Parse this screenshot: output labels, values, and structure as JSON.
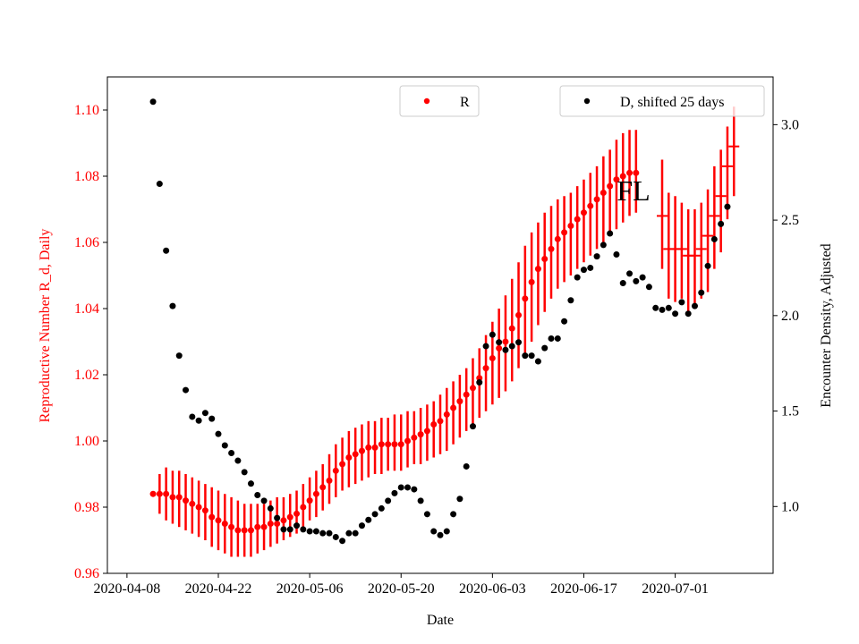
{
  "chart_data": {
    "type": "scatter",
    "title": "",
    "annotation": "FL",
    "xlabel": "Date",
    "ylabel_left": "Reproductive Number R_d, Daily",
    "ylabel_right": "Encounter Density, Adjusted",
    "x_range": [
      "2020-04-05",
      "2020-07-16"
    ],
    "x_ticks": [
      "2020-04-08",
      "2020-04-22",
      "2020-05-06",
      "2020-05-20",
      "2020-06-03",
      "2020-06-17",
      "2020-07-01"
    ],
    "y_left_range": [
      0.96,
      1.11
    ],
    "y_left_ticks": [
      "0.96",
      "0.98",
      "1.00",
      "1.02",
      "1.04",
      "1.06",
      "1.08",
      "1.10"
    ],
    "y_right_range": [
      0.65,
      3.25
    ],
    "y_right_ticks": [
      "1.0",
      "1.5",
      "2.0",
      "2.5",
      "3.0"
    ],
    "grid": false,
    "colors": {
      "R": "#ff0000",
      "D": "#000000",
      "left_axis_text": "#ff0000"
    },
    "legend": [
      {
        "label": "R",
        "color": "#ff0000",
        "placement": "upper-center"
      },
      {
        "label": "D, shifted 25 days",
        "color": "#000000",
        "placement": "upper-right"
      }
    ],
    "series": [
      {
        "name": "R",
        "axis": "left",
        "marker_style": "dot",
        "start_date": "2020-04-12",
        "values": [
          0.984,
          0.984,
          0.984,
          0.983,
          0.983,
          0.982,
          0.981,
          0.98,
          0.979,
          0.977,
          0.976,
          0.975,
          0.974,
          0.973,
          0.973,
          0.973,
          0.974,
          0.974,
          0.975,
          0.975,
          0.976,
          0.977,
          0.978,
          0.98,
          0.982,
          0.984,
          0.986,
          0.988,
          0.991,
          0.993,
          0.995,
          0.996,
          0.997,
          0.998,
          0.998,
          0.999,
          0.999,
          0.999,
          0.999,
          1.0,
          1.001,
          1.002,
          1.003,
          1.005,
          1.006,
          1.008,
          1.01,
          1.012,
          1.014,
          1.016,
          1.019,
          1.022,
          1.025,
          1.028,
          1.03,
          1.034,
          1.038,
          1.043,
          1.048,
          1.052,
          1.055,
          1.058,
          1.061,
          1.063,
          1.065,
          1.067,
          1.069,
          1.071,
          1.073,
          1.075,
          1.077,
          1.079,
          1.08,
          1.081,
          1.081
        ],
        "err_low": [
          0.984,
          0.978,
          0.976,
          0.975,
          0.974,
          0.973,
          0.972,
          0.971,
          0.97,
          0.968,
          0.967,
          0.966,
          0.965,
          0.965,
          0.965,
          0.965,
          0.966,
          0.967,
          0.968,
          0.969,
          0.97,
          0.971,
          0.972,
          0.974,
          0.976,
          0.977,
          0.979,
          0.981,
          0.983,
          0.985,
          0.986,
          0.987,
          0.988,
          0.989,
          0.99,
          0.99,
          0.991,
          0.991,
          0.991,
          0.992,
          0.993,
          0.993,
          0.994,
          0.995,
          0.996,
          0.997,
          0.999,
          1.001,
          1.003,
          1.005,
          1.007,
          1.009,
          1.011,
          1.013,
          1.015,
          1.018,
          1.022,
          1.026,
          1.03,
          1.035,
          1.039,
          1.043,
          1.046,
          1.048,
          1.05,
          1.052,
          1.054,
          1.056,
          1.058,
          1.06,
          1.062,
          1.064,
          1.066,
          1.068,
          1.069
        ],
        "err_high": [
          0.984,
          0.99,
          0.992,
          0.991,
          0.991,
          0.99,
          0.989,
          0.988,
          0.987,
          0.986,
          0.985,
          0.984,
          0.983,
          0.982,
          0.981,
          0.981,
          0.981,
          0.981,
          0.982,
          0.983,
          0.983,
          0.984,
          0.985,
          0.987,
          0.989,
          0.991,
          0.993,
          0.996,
          0.999,
          1.001,
          1.003,
          1.004,
          1.005,
          1.006,
          1.006,
          1.007,
          1.007,
          1.008,
          1.008,
          1.009,
          1.009,
          1.01,
          1.011,
          1.012,
          1.014,
          1.016,
          1.018,
          1.02,
          1.022,
          1.025,
          1.028,
          1.032,
          1.036,
          1.04,
          1.044,
          1.049,
          1.054,
          1.059,
          1.063,
          1.066,
          1.069,
          1.071,
          1.073,
          1.074,
          1.075,
          1.077,
          1.079,
          1.081,
          1.083,
          1.086,
          1.088,
          1.091,
          1.093,
          1.094,
          1.094
        ]
      },
      {
        "name": "R",
        "axis": "left",
        "marker_style": "errorbar-only",
        "points": [
          {
            "date": "2020-06-29",
            "value": 1.068,
            "low": 1.052,
            "high": 1.085
          },
          {
            "date": "2020-06-30",
            "value": 1.058,
            "low": 1.043,
            "high": 1.075
          },
          {
            "date": "2020-07-01",
            "value": 1.058,
            "low": 1.042,
            "high": 1.074
          },
          {
            "date": "2020-07-02",
            "value": 1.058,
            "low": 1.043,
            "high": 1.072
          },
          {
            "date": "2020-07-03",
            "value": 1.056,
            "low": 1.039,
            "high": 1.07
          },
          {
            "date": "2020-07-04",
            "value": 1.056,
            "low": 1.04,
            "high": 1.07
          },
          {
            "date": "2020-07-05",
            "value": 1.058,
            "low": 1.043,
            "high": 1.072
          },
          {
            "date": "2020-07-06",
            "value": 1.062,
            "low": 1.045,
            "high": 1.076
          },
          {
            "date": "2020-07-07",
            "value": 1.068,
            "low": 1.052,
            "high": 1.083
          },
          {
            "date": "2020-07-08",
            "value": 1.074,
            "low": 1.057,
            "high": 1.088
          },
          {
            "date": "2020-07-09",
            "value": 1.083,
            "low": 1.067,
            "high": 1.095
          },
          {
            "date": "2020-07-10",
            "value": 1.089,
            "low": 1.074,
            "high": 1.101
          }
        ]
      },
      {
        "name": "D, shifted 25 days",
        "axis": "right",
        "marker_style": "dot",
        "start_date": "2020-04-12",
        "values": [
          3.12,
          2.69,
          2.34,
          2.05,
          1.79,
          1.61,
          1.47,
          1.45,
          1.49,
          1.46,
          1.38,
          1.32,
          1.28,
          1.24,
          1.18,
          1.12,
          1.06,
          1.03,
          0.99,
          0.94,
          0.88,
          0.88,
          0.9,
          0.88,
          0.87,
          0.87,
          0.86,
          0.86,
          0.84,
          0.82,
          0.86,
          0.86,
          0.9,
          0.93,
          0.96,
          0.99,
          1.03,
          1.07,
          1.1,
          1.1,
          1.09,
          1.03,
          0.96,
          0.87,
          0.85,
          0.87,
          0.96,
          1.04,
          1.21,
          1.42,
          1.65,
          1.84,
          1.9,
          1.86,
          1.82,
          1.84,
          1.86,
          1.79,
          1.79,
          1.76,
          1.83,
          1.88,
          1.88,
          1.97,
          2.08,
          2.2,
          2.24,
          2.25,
          2.31,
          2.37,
          2.43,
          2.32,
          2.17,
          2.22,
          2.18,
          2.2,
          2.15,
          2.04,
          2.03,
          2.04,
          2.01,
          2.07,
          2.01,
          2.05,
          2.12,
          2.26,
          2.4,
          2.48,
          2.57
        ]
      }
    ]
  }
}
